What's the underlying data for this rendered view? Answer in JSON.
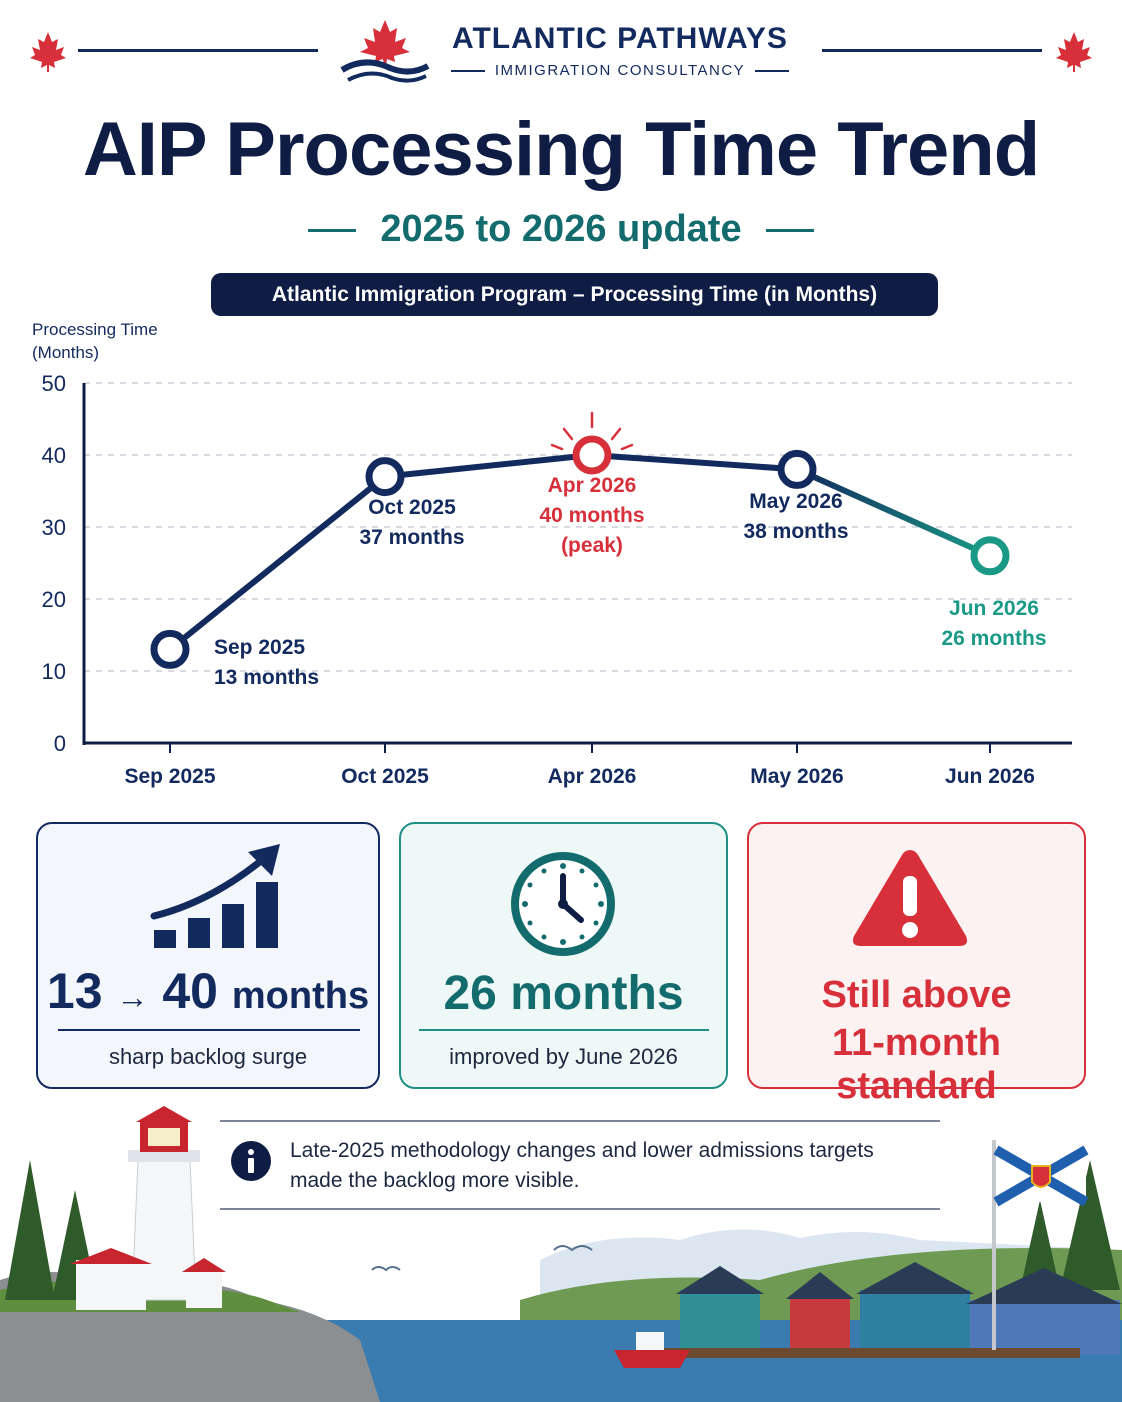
{
  "brand": {
    "name": "ATLANTIC PATHWAYS",
    "sub": "IMMIGRATION CONSULTANCY"
  },
  "title": "AIP Processing Time Trend",
  "subtitle": "2025 to 2026 update",
  "chart_title": "Atlantic Immigration Program – Processing Time (in Months)",
  "y_axis_label": [
    "Processing Time",
    "(Months)"
  ],
  "chart_data": {
    "type": "line",
    "title": "Atlantic Immigration Program – Processing Time (in Months)",
    "ylabel": "Processing Time (Months)",
    "xlabel": "",
    "categories": [
      "Sep 2025",
      "Oct 2025",
      "Apr 2026",
      "May 2026",
      "Jun 2026"
    ],
    "values": [
      13,
      37,
      40,
      38,
      26
    ],
    "ylim": [
      0,
      50
    ],
    "yticks": [
      0,
      10,
      20,
      30,
      40,
      50
    ],
    "grid": true,
    "point_labels": [
      [
        "Sep 2025",
        "13 months"
      ],
      [
        "Oct 2025",
        "37 months"
      ],
      [
        "Apr 2026",
        "40 months",
        "(peak)"
      ],
      [
        "May 2026",
        "38 months"
      ],
      [
        "Jun 2026",
        "26 months"
      ]
    ],
    "colors": {
      "line": "#132a5e",
      "peak": "#d7303a",
      "latest": "#1a9a86"
    }
  },
  "cards": [
    {
      "headline_a": "13",
      "arrow": "→",
      "headline_b": "40",
      "unit": "months",
      "caption": "sharp backlog surge",
      "icon": "rising-bar-chart-icon"
    },
    {
      "headline": "26 months",
      "caption": "improved by June 2026",
      "icon": "clock-icon"
    },
    {
      "headline_1": "Still above",
      "headline_2": "11-month standard",
      "icon": "warning-icon"
    }
  ],
  "info": {
    "icon": "info-icon",
    "line1": "Late-2025 methodology changes and lower admissions targets",
    "line2": "made the backlog more visible."
  },
  "colors": {
    "navy": "#132a5e",
    "teal": "#136b6e",
    "green": "#1a9a86",
    "red": "#d7303a"
  }
}
